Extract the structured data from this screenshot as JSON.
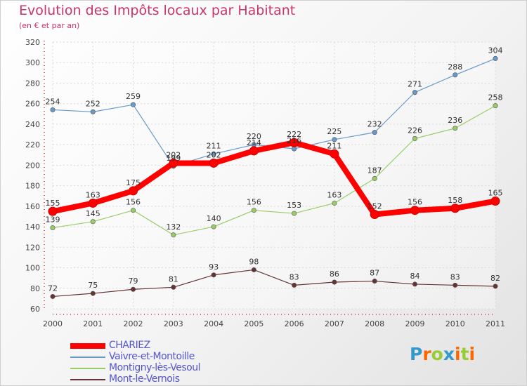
{
  "title": "Evolution des Impôts locaux par Habitant",
  "subtitle": "(en € et par an)",
  "logo": "Proxiti",
  "chart_data": {
    "type": "line",
    "title": "Evolution des Impôts locaux par Habitant",
    "subtitle": "(en € et par an)",
    "xlabel": "",
    "ylabel": "",
    "x": [
      "2000",
      "2001",
      "2002",
      "2003",
      "2004",
      "2005",
      "2006",
      "2007",
      "2008",
      "2009",
      "2010",
      "2011"
    ],
    "y_ticks": [
      60,
      80,
      100,
      120,
      140,
      160,
      180,
      200,
      220,
      240,
      260,
      280,
      300,
      320
    ],
    "ylim": [
      60,
      320
    ],
    "grid": true,
    "legend_position": "bottom-left",
    "series": [
      {
        "name": "CHARIEZ",
        "color": "#ff0000",
        "values": [
          155,
          163,
          175,
          202,
          202,
          214,
          222,
          211,
          152,
          156,
          158,
          165
        ]
      },
      {
        "name": "Vaivre-et-Montoille",
        "color": "#6699cc",
        "values": [
          254,
          252,
          259,
          199,
          211,
          220,
          216,
          225,
          232,
          271,
          288,
          304
        ]
      },
      {
        "name": "Montigny-lès-Vesoul",
        "color": "#99cc66",
        "values": [
          139,
          145,
          156,
          132,
          140,
          156,
          153,
          163,
          187,
          226,
          236,
          258
        ]
      },
      {
        "name": "Mont-le-Vernois",
        "color": "#663333",
        "values": [
          72,
          75,
          79,
          81,
          93,
          98,
          83,
          86,
          87,
          84,
          83,
          82
        ]
      }
    ]
  }
}
